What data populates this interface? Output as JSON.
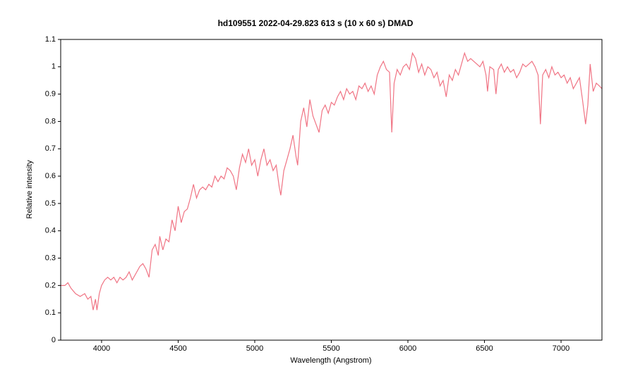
{
  "chart_data": {
    "type": "line",
    "title": "hd109551   2022-04-29.823  613 s (10 x 60 s)   DMAD",
    "x_label": "Wavelength (Angstrom)",
    "y_label": "Relative intensity",
    "xlim": [
      3733,
      7267
    ],
    "ylim": [
      0,
      1.1
    ],
    "xticks": [
      4000,
      4500,
      5000,
      5500,
      6000,
      6500,
      7000
    ],
    "yticks": [
      0,
      0.1,
      0.2,
      0.3,
      0.4,
      0.5,
      0.6,
      0.7,
      0.8,
      0.9,
      1,
      1.1
    ],
    "x": [
      3733,
      3760,
      3780,
      3800,
      3830,
      3860,
      3890,
      3910,
      3930,
      3945,
      3960,
      3970,
      3985,
      4000,
      4020,
      4040,
      4060,
      4080,
      4100,
      4120,
      4140,
      4160,
      4180,
      4200,
      4230,
      4250,
      4270,
      4290,
      4310,
      4330,
      4350,
      4370,
      4380,
      4400,
      4420,
      4440,
      4460,
      4480,
      4500,
      4520,
      4540,
      4560,
      4580,
      4600,
      4620,
      4640,
      4660,
      4680,
      4700,
      4720,
      4740,
      4760,
      4780,
      4800,
      4820,
      4840,
      4860,
      4880,
      4900,
      4920,
      4940,
      4960,
      4980,
      5000,
      5020,
      5040,
      5060,
      5080,
      5100,
      5120,
      5140,
      5160,
      5170,
      5190,
      5210,
      5230,
      5250,
      5270,
      5280,
      5300,
      5320,
      5340,
      5360,
      5380,
      5400,
      5420,
      5440,
      5460,
      5480,
      5500,
      5520,
      5540,
      5560,
      5580,
      5600,
      5620,
      5640,
      5660,
      5680,
      5700,
      5720,
      5740,
      5760,
      5780,
      5800,
      5820,
      5840,
      5860,
      5880,
      5895,
      5910,
      5930,
      5950,
      5970,
      5990,
      6010,
      6030,
      6050,
      6070,
      6090,
      6110,
      6130,
      6150,
      6170,
      6190,
      6210,
      6230,
      6250,
      6270,
      6290,
      6310,
      6330,
      6350,
      6370,
      6390,
      6410,
      6430,
      6450,
      6470,
      6490,
      6510,
      6520,
      6535,
      6560,
      6575,
      6590,
      6610,
      6630,
      6650,
      6670,
      6690,
      6710,
      6730,
      6750,
      6770,
      6790,
      6810,
      6830,
      6850,
      6865,
      6880,
      6900,
      6920,
      6940,
      6960,
      6980,
      7000,
      7020,
      7040,
      7060,
      7080,
      7100,
      7120,
      7140,
      7160,
      7175,
      7190,
      7210,
      7230,
      7250,
      7267
    ],
    "series": [
      {
        "color": "#f07484",
        "values": [
          0.2,
          0.2,
          0.21,
          0.19,
          0.17,
          0.16,
          0.17,
          0.15,
          0.16,
          0.11,
          0.15,
          0.11,
          0.17,
          0.2,
          0.22,
          0.23,
          0.22,
          0.23,
          0.21,
          0.23,
          0.22,
          0.23,
          0.25,
          0.22,
          0.25,
          0.27,
          0.28,
          0.26,
          0.23,
          0.33,
          0.35,
          0.31,
          0.38,
          0.33,
          0.37,
          0.36,
          0.44,
          0.4,
          0.49,
          0.43,
          0.47,
          0.48,
          0.52,
          0.57,
          0.52,
          0.55,
          0.56,
          0.55,
          0.57,
          0.56,
          0.6,
          0.58,
          0.6,
          0.59,
          0.63,
          0.62,
          0.6,
          0.55,
          0.63,
          0.68,
          0.65,
          0.7,
          0.64,
          0.66,
          0.6,
          0.66,
          0.7,
          0.64,
          0.66,
          0.62,
          0.64,
          0.56,
          0.53,
          0.62,
          0.66,
          0.7,
          0.75,
          0.67,
          0.64,
          0.8,
          0.85,
          0.78,
          0.88,
          0.82,
          0.79,
          0.76,
          0.84,
          0.86,
          0.83,
          0.87,
          0.86,
          0.89,
          0.91,
          0.88,
          0.92,
          0.9,
          0.91,
          0.88,
          0.93,
          0.92,
          0.94,
          0.91,
          0.93,
          0.9,
          0.97,
          1.0,
          1.02,
          0.99,
          0.98,
          0.76,
          0.94,
          0.99,
          0.97,
          1.0,
          1.01,
          0.99,
          1.05,
          1.03,
          0.98,
          1.01,
          0.97,
          1.0,
          0.99,
          0.96,
          0.98,
          0.93,
          0.95,
          0.89,
          0.97,
          0.95,
          0.99,
          0.97,
          1.01,
          1.05,
          1.02,
          1.03,
          1.02,
          1.01,
          1.0,
          1.02,
          0.97,
          0.91,
          1.0,
          0.99,
          0.9,
          0.99,
          1.01,
          0.98,
          1.0,
          0.98,
          0.99,
          0.96,
          0.98,
          1.01,
          1.0,
          1.01,
          1.02,
          1.0,
          0.97,
          0.79,
          0.97,
          0.99,
          0.96,
          1.0,
          0.97,
          0.98,
          0.96,
          0.97,
          0.94,
          0.96,
          0.92,
          0.94,
          0.96,
          0.88,
          0.79,
          0.86,
          1.01,
          0.91,
          0.94,
          0.93,
          0.92
        ]
      }
    ]
  }
}
